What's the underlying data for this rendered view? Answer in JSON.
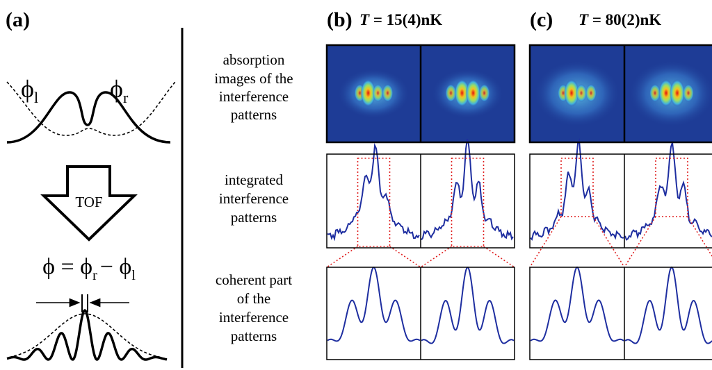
{
  "panels": [
    {
      "label": "(a)"
    },
    {
      "label": "(b)",
      "temperature": {
        "symbol": "T",
        "rest": " = 15(4)nK"
      }
    },
    {
      "label": "(c)",
      "temperature": {
        "symbol": "T",
        "rest": " = 80(2)nK"
      }
    }
  ],
  "row_labels": [
    [
      "absorption",
      "images of the",
      "interference",
      "patterns"
    ],
    [
      "integrated",
      "interference",
      "patterns"
    ],
    [
      "coherent part",
      "of the",
      "interference",
      "patterns"
    ]
  ],
  "left": {
    "phi_left": {
      "symbol": "ϕ",
      "sub": "l"
    },
    "phi_right": {
      "symbol": "ϕ",
      "sub": "r"
    },
    "arrow_label": "TOF",
    "equation": [
      "ϕ = ϕ",
      "r",
      "− ϕ",
      "l"
    ]
  }
}
